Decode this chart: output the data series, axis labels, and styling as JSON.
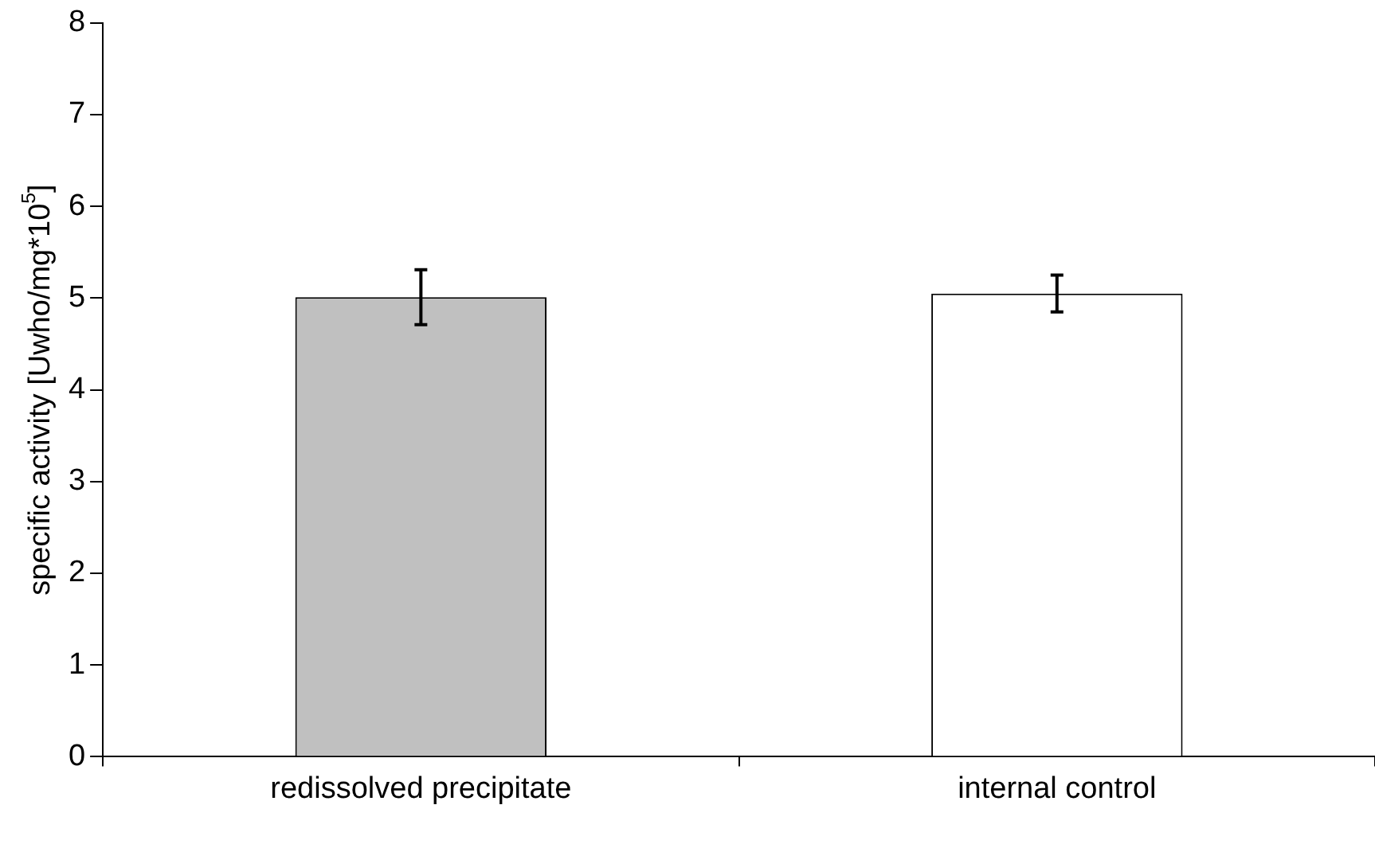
{
  "chart_data": {
    "type": "bar",
    "ylabel": "specific activity [Uwho/mg*10$^{5}$]",
    "categories": [
      "redissolved precipitate",
      "internal control"
    ],
    "values": [
      5.01,
      5.05
    ],
    "colors": [
      "#c0c0c0",
      "#ffffff"
    ],
    "errors": [
      0.3,
      0.2
    ],
    "ylim": [
      0,
      8
    ],
    "yticks": [
      0,
      1,
      2,
      3,
      4,
      5,
      6,
      7,
      8
    ],
    "grid": false,
    "legend": false
  }
}
